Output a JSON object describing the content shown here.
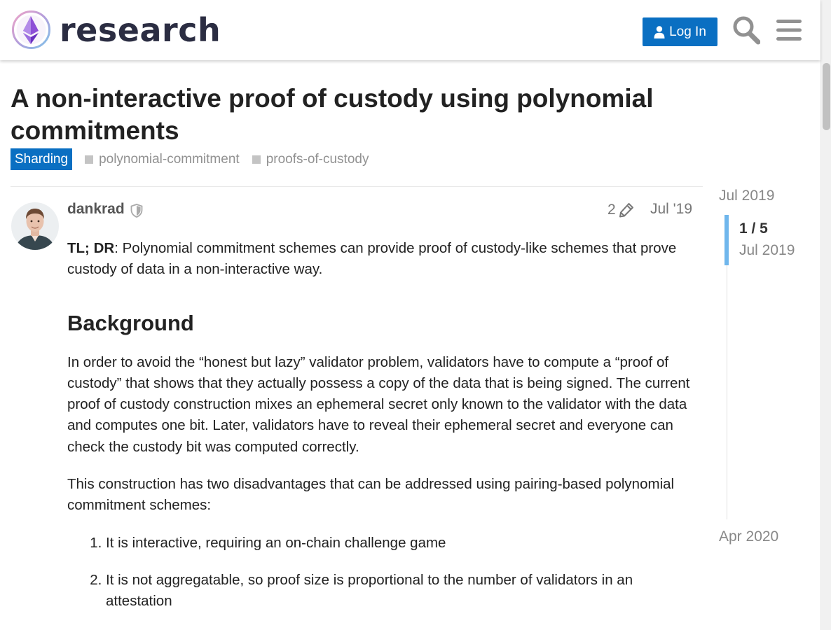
{
  "header": {
    "site_name": "research",
    "login_label": "Log In"
  },
  "topic": {
    "title": "A non-interactive proof of custody using polynomial commitments",
    "category": "Sharding",
    "tags": [
      "polynomial-commitment",
      "proofs-of-custody"
    ]
  },
  "post": {
    "username": "dankrad",
    "edit_count": "2",
    "date": "Jul '19",
    "tldr_label": "TL; DR",
    "tldr_text": ": Polynomial commitment schemes can provide proof of custody-like schemes that prove custody of data in a non-interactive way.",
    "heading": "Background",
    "para1": "In order to avoid the “honest but lazy” validator problem, validators have to compute a “proof of custody” that shows that they actually possess a copy of the data that is being signed. The current proof of custody construction mixes an ephemeral secret only known to the validator with the data and computes one bit. Later, validators have to reveal their ephemeral secret and everyone can check the custody bit was computed correctly.",
    "para2": "This construction has two disadvantages that can be addressed using pairing-based polynomial commitment schemes:",
    "list": [
      "It is interactive, requiring an on-chain challenge game",
      "It is not aggregatable, so proof size is proportional to the number of validators in an attestation"
    ]
  },
  "timeline": {
    "start": "Jul 2019",
    "position": "1 / 5",
    "position_date": "Jul 2019",
    "end": "Apr 2020"
  },
  "colors": {
    "accent": "#0a6fc2",
    "timeline_handle": "#6fb6ec"
  }
}
